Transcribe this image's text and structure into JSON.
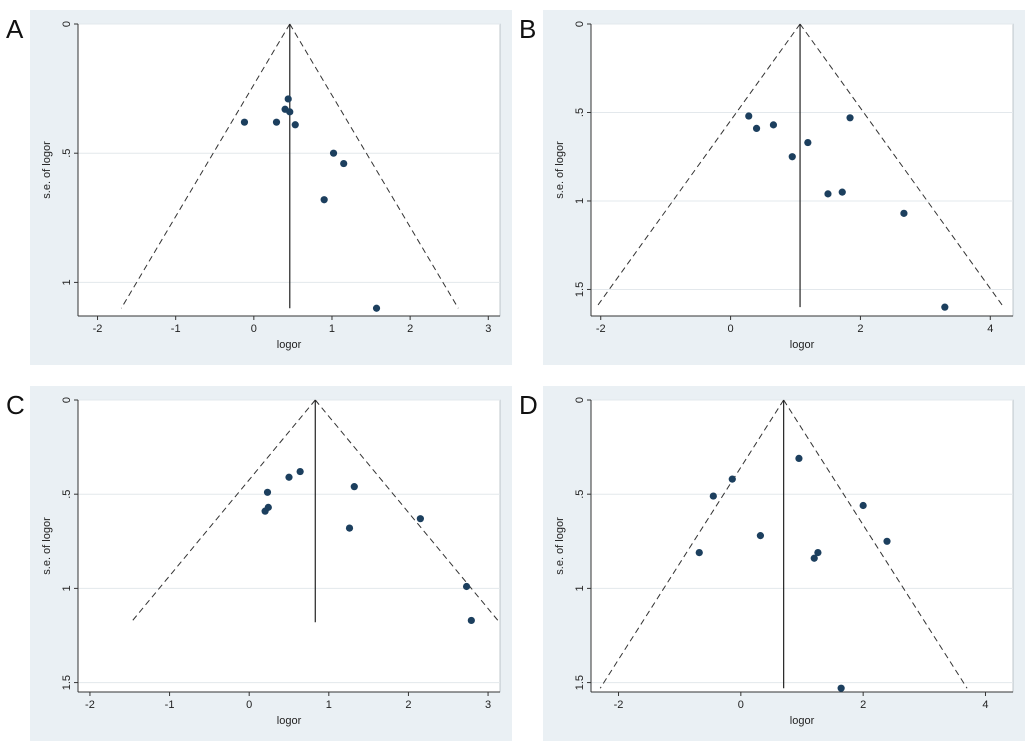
{
  "chart_data": [
    {
      "panel_label": "A",
      "type": "scatter",
      "xlabel": "logor",
      "ylabel": "s.e. of logor",
      "x_ticks": [
        "-2",
        "-1",
        "0",
        "1",
        "2",
        "3"
      ],
      "x_tick_values": [
        -2,
        -1,
        0,
        1,
        2,
        3
      ],
      "y_ticks": [
        "0",
        ".5",
        "1"
      ],
      "y_tick_values": [
        0,
        0.5,
        1
      ],
      "xlim": [
        -2.25,
        3.15
      ],
      "ylim": [
        0,
        1.13
      ],
      "y_reversed": true,
      "grid": true,
      "pooled_logor": 0.46,
      "funnel_se_max": 1.1,
      "points": [
        {
          "x": -0.12,
          "y": 0.38
        },
        {
          "x": 0.29,
          "y": 0.38
        },
        {
          "x": 0.4,
          "y": 0.33
        },
        {
          "x": 0.44,
          "y": 0.29
        },
        {
          "x": 0.46,
          "y": 0.34
        },
        {
          "x": 0.53,
          "y": 0.39
        },
        {
          "x": 1.02,
          "y": 0.5
        },
        {
          "x": 1.15,
          "y": 0.54
        },
        {
          "x": 0.9,
          "y": 0.68
        },
        {
          "x": 1.57,
          "y": 1.1
        }
      ]
    },
    {
      "panel_label": "B",
      "type": "scatter",
      "xlabel": "logor",
      "ylabel": "s.e. of logor",
      "x_ticks": [
        "-2",
        "0",
        "2",
        "4"
      ],
      "x_tick_values": [
        -2,
        0,
        2,
        4
      ],
      "y_ticks": [
        "0",
        ".5",
        "1",
        "1.5"
      ],
      "y_tick_values": [
        0,
        0.5,
        1,
        1.5
      ],
      "xlim": [
        -2.15,
        4.35
      ],
      "ylim": [
        0,
        1.65
      ],
      "y_reversed": true,
      "grid": true,
      "pooled_logor": 1.07,
      "funnel_se_max": 1.6,
      "points": [
        {
          "x": 0.28,
          "y": 0.52
        },
        {
          "x": 0.4,
          "y": 0.59
        },
        {
          "x": 0.66,
          "y": 0.57
        },
        {
          "x": 0.95,
          "y": 0.75
        },
        {
          "x": 1.19,
          "y": 0.67
        },
        {
          "x": 1.5,
          "y": 0.96
        },
        {
          "x": 1.72,
          "y": 0.95
        },
        {
          "x": 1.84,
          "y": 0.53
        },
        {
          "x": 2.67,
          "y": 1.07
        },
        {
          "x": 3.3,
          "y": 1.6
        }
      ]
    },
    {
      "panel_label": "C",
      "type": "scatter",
      "xlabel": "logor",
      "ylabel": "s.e. of logor",
      "x_ticks": [
        "-2",
        "-1",
        "0",
        "1",
        "2",
        "3"
      ],
      "x_tick_values": [
        -2,
        -1,
        0,
        1,
        2,
        3
      ],
      "y_ticks": [
        "0",
        ".5",
        "1",
        "1.5"
      ],
      "y_tick_values": [
        0,
        0.5,
        1,
        1.5
      ],
      "xlim": [
        -2.15,
        3.15
      ],
      "ylim": [
        0,
        1.55
      ],
      "y_reversed": true,
      "grid": true,
      "pooled_logor": 0.83,
      "funnel_se_max": 1.18,
      "points": [
        {
          "x": 0.2,
          "y": 0.59
        },
        {
          "x": 0.24,
          "y": 0.57
        },
        {
          "x": 0.23,
          "y": 0.49
        },
        {
          "x": 0.5,
          "y": 0.41
        },
        {
          "x": 0.64,
          "y": 0.38
        },
        {
          "x": 1.26,
          "y": 0.68
        },
        {
          "x": 1.32,
          "y": 0.46
        },
        {
          "x": 2.15,
          "y": 0.63
        },
        {
          "x": 2.73,
          "y": 0.99
        },
        {
          "x": 2.79,
          "y": 1.17
        }
      ]
    },
    {
      "panel_label": "D",
      "type": "scatter",
      "xlabel": "logor",
      "ylabel": "s.e. of logor",
      "x_ticks": [
        "-2",
        "0",
        "2",
        "4"
      ],
      "x_tick_values": [
        -2,
        0,
        2,
        4
      ],
      "y_ticks": [
        "0",
        ".5",
        "1",
        "1.5"
      ],
      "y_tick_values": [
        0,
        0.5,
        1,
        1.5
      ],
      "xlim": [
        -2.45,
        4.45
      ],
      "ylim": [
        0,
        1.55
      ],
      "y_reversed": true,
      "grid": true,
      "pooled_logor": 0.7,
      "funnel_se_max": 1.53,
      "points": [
        {
          "x": -0.68,
          "y": 0.81
        },
        {
          "x": -0.45,
          "y": 0.51
        },
        {
          "x": -0.14,
          "y": 0.42
        },
        {
          "x": 0.32,
          "y": 0.72
        },
        {
          "x": 0.95,
          "y": 0.31
        },
        {
          "x": 1.2,
          "y": 0.84
        },
        {
          "x": 1.26,
          "y": 0.81
        },
        {
          "x": 2.0,
          "y": 0.56
        },
        {
          "x": 2.39,
          "y": 0.75
        },
        {
          "x": 1.64,
          "y": 1.53
        }
      ]
    }
  ],
  "colors": {
    "panel_background": "#eaf0f4",
    "plot_background": "#ffffff",
    "marker": "#1c3f5e",
    "funnel_line": "#333333",
    "pooled_line": "#222222",
    "grid": "#e3e8ec"
  }
}
